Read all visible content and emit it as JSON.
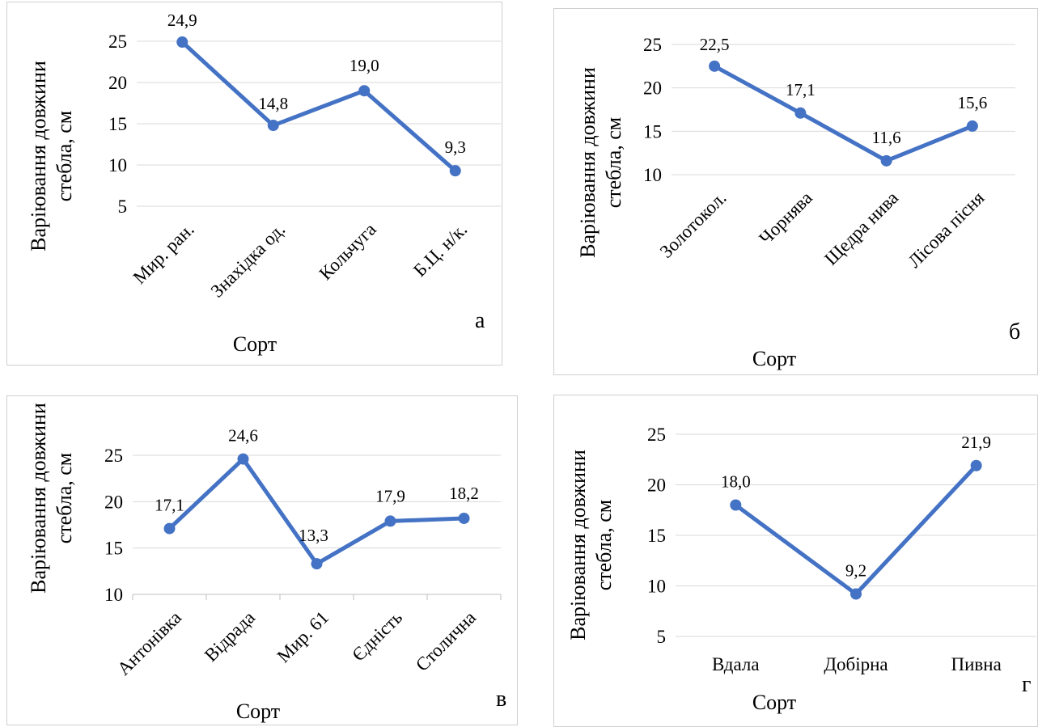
{
  "chart_data": [
    {
      "type": "line",
      "panel": "а",
      "categories": [
        "Мир. ран.",
        "Знахідка од.",
        "Кольчуга",
        "Б.Ц. н/к."
      ],
      "values": [
        24.9,
        14.8,
        19.0,
        9.3
      ],
      "data_labels": [
        "24,9",
        "14,8",
        "19,0",
        "9,3"
      ],
      "yticks": [
        "5",
        "10",
        "15",
        "20",
        "25"
      ],
      "ylim": [
        5,
        25
      ],
      "xlabel": "Сорт",
      "ylabel_lines": [
        "Варіювання довжини",
        "стебла, см"
      ],
      "series_color": "#4472C4",
      "grid": true
    },
    {
      "type": "line",
      "panel": "б",
      "categories": [
        "Золотокол.",
        "Чорнява",
        "Щедра нива",
        "Лісова пісня"
      ],
      "values": [
        22.5,
        17.1,
        11.6,
        15.6
      ],
      "data_labels": [
        "22,5",
        "17,1",
        "11,6",
        "15,6"
      ],
      "yticks": [
        "10",
        "15",
        "20",
        "25"
      ],
      "ylim": [
        10,
        25
      ],
      "xlabel": "Сорт",
      "ylabel_lines": [
        "Варіювання довжини",
        "стебла, см"
      ],
      "series_color": "#4472C4",
      "grid": true
    },
    {
      "type": "line",
      "panel": "в",
      "categories": [
        "Антонівка",
        "Відрада",
        "Мир. 61",
        "Єдність",
        "Столична"
      ],
      "values": [
        17.1,
        24.6,
        13.3,
        17.9,
        18.2
      ],
      "data_labels": [
        "17,1",
        "24,6",
        "13,3",
        "17,9",
        "18,2"
      ],
      "yticks": [
        "10",
        "15",
        "20",
        "25"
      ],
      "ylim": [
        10,
        25
      ],
      "xlabel": "Сорт",
      "ylabel_lines": [
        "Варіювання довжини",
        "стебла, см"
      ],
      "series_color": "#4472C4",
      "grid": true
    },
    {
      "type": "line",
      "panel": "г",
      "categories": [
        "Вдала",
        "Добірна",
        "Пивна"
      ],
      "values": [
        18.0,
        9.2,
        21.9
      ],
      "data_labels": [
        "18,0",
        "9,2",
        "21,9"
      ],
      "yticks": [
        "5",
        "10",
        "15",
        "20",
        "25"
      ],
      "ylim": [
        5,
        25
      ],
      "xlabel": "Сорт",
      "ylabel_lines": [
        "Варіювання довжини",
        "стебла, см"
      ],
      "series_color": "#4472C4",
      "grid": true
    }
  ]
}
